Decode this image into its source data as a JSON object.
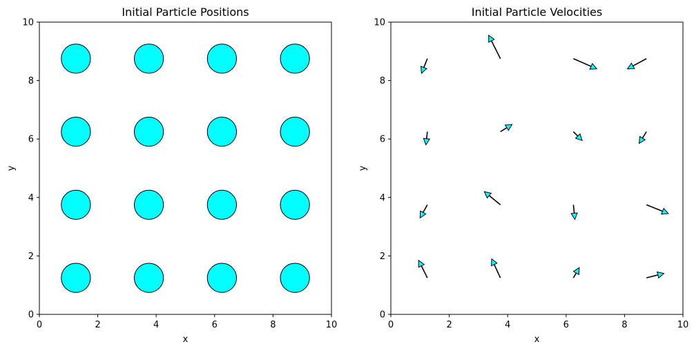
{
  "chart_data": [
    {
      "type": "scatter",
      "title": "Initial Particle Positions",
      "xlabel": "x",
      "ylabel": "y",
      "xlim": [
        0,
        10
      ],
      "ylim": [
        0,
        10
      ],
      "xticks": [
        "0",
        "2",
        "4",
        "6",
        "8",
        "10"
      ],
      "yticks": [
        "0",
        "2",
        "4",
        "6",
        "8",
        "10"
      ],
      "grid": false,
      "marker_color": "#00ffff",
      "edge_color": "#000000",
      "particle_radius": 0.5,
      "points": [
        {
          "x": 1.25,
          "y": 1.25
        },
        {
          "x": 3.75,
          "y": 1.25
        },
        {
          "x": 6.25,
          "y": 1.25
        },
        {
          "x": 8.75,
          "y": 1.25
        },
        {
          "x": 1.25,
          "y": 3.75
        },
        {
          "x": 3.75,
          "y": 3.75
        },
        {
          "x": 6.25,
          "y": 3.75
        },
        {
          "x": 8.75,
          "y": 3.75
        },
        {
          "x": 1.25,
          "y": 6.25
        },
        {
          "x": 3.75,
          "y": 6.25
        },
        {
          "x": 6.25,
          "y": 6.25
        },
        {
          "x": 8.75,
          "y": 6.25
        },
        {
          "x": 1.25,
          "y": 8.75
        },
        {
          "x": 3.75,
          "y": 8.75
        },
        {
          "x": 6.25,
          "y": 8.75
        },
        {
          "x": 8.75,
          "y": 8.75
        }
      ]
    },
    {
      "type": "quiver",
      "title": "Initial Particle Velocities",
      "xlabel": "x",
      "ylabel": "y",
      "xlim": [
        0,
        10
      ],
      "ylim": [
        0,
        10
      ],
      "xticks": [
        "0",
        "2",
        "4",
        "6",
        "8",
        "10"
      ],
      "yticks": [
        "0",
        "2",
        "4",
        "6",
        "8",
        "10"
      ],
      "grid": false,
      "arrow_head_color": "#00ffff",
      "arrow_line_color": "#000000",
      "vectors": [
        {
          "x": 1.25,
          "y": 8.75,
          "dx": -0.2,
          "dy": -0.5
        },
        {
          "x": 3.75,
          "y": 8.75,
          "dx": -0.4,
          "dy": 0.8
        },
        {
          "x": 6.25,
          "y": 8.75,
          "dx": 0.8,
          "dy": -0.35
        },
        {
          "x": 8.75,
          "y": 8.75,
          "dx": -0.65,
          "dy": -0.35
        },
        {
          "x": 1.25,
          "y": 6.25,
          "dx": -0.05,
          "dy": -0.45
        },
        {
          "x": 3.75,
          "y": 6.25,
          "dx": 0.4,
          "dy": 0.25
        },
        {
          "x": 6.25,
          "y": 6.25,
          "dx": 0.3,
          "dy": -0.3
        },
        {
          "x": 8.75,
          "y": 6.25,
          "dx": -0.25,
          "dy": -0.4
        },
        {
          "x": 1.25,
          "y": 3.75,
          "dx": -0.25,
          "dy": -0.45
        },
        {
          "x": 3.75,
          "y": 3.75,
          "dx": -0.55,
          "dy": 0.45
        },
        {
          "x": 6.25,
          "y": 3.75,
          "dx": 0.05,
          "dy": -0.5
        },
        {
          "x": 8.75,
          "y": 3.75,
          "dx": 0.75,
          "dy": -0.3
        },
        {
          "x": 1.25,
          "y": 1.25,
          "dx": -0.3,
          "dy": 0.6
        },
        {
          "x": 3.75,
          "y": 1.25,
          "dx": -0.3,
          "dy": 0.65
        },
        {
          "x": 6.25,
          "y": 1.25,
          "dx": 0.2,
          "dy": 0.35
        },
        {
          "x": 8.75,
          "y": 1.25,
          "dx": 0.6,
          "dy": 0.15
        }
      ]
    }
  ]
}
